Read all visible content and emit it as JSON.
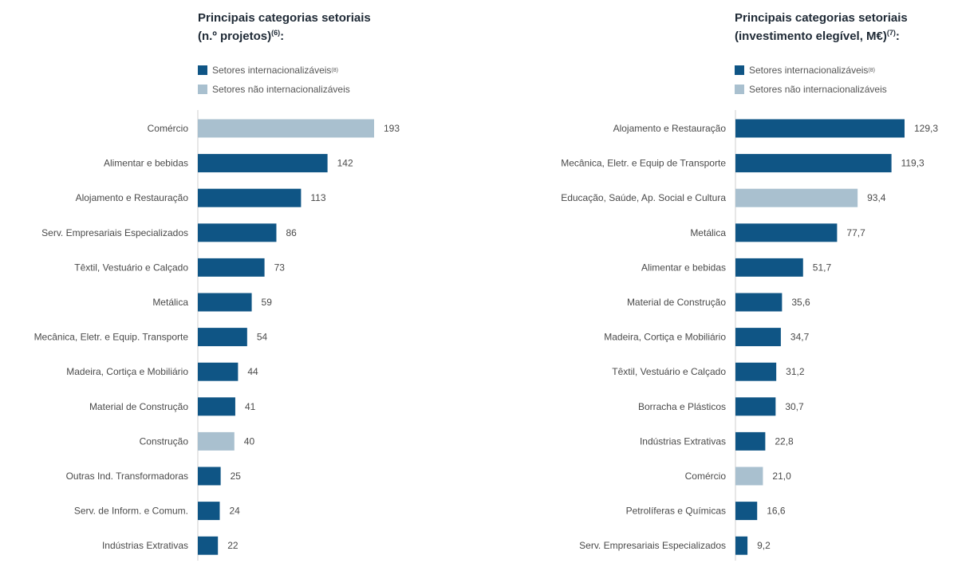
{
  "colors": {
    "internacionalizaveis": "#0f5585",
    "nao_internacionalizaveis": "#a9c0cf",
    "axis": "#cfcfcf"
  },
  "chart_data": [
    {
      "type": "bar",
      "orientation": "horizontal",
      "title_line1": "Principais categorias setoriais",
      "title_line2": "(n.º projetos)",
      "title_sup": "(6)",
      "title_suffix": ":",
      "legend": [
        {
          "label": "Setores internacionalizáveis",
          "sup": "(8)",
          "key": "internacionalizaveis"
        },
        {
          "label": "Setores não internacionalizáveis",
          "sup": "",
          "key": "nao_internacionalizaveis"
        }
      ],
      "xlim": [
        0,
        193
      ],
      "categories": [
        "Comércio",
        "Alimentar e bebidas",
        "Alojamento e Restauração",
        "Serv. Empresariais Especializados",
        "Têxtil, Vestuário e Calçado",
        "Metálica",
        "Mecânica, Eletr. e Equip. Transporte",
        "Madeira, Cortiça e Mobiliário",
        "Material de Construção",
        "Construção",
        "Outras Ind. Transformadoras",
        "Serv. de Inform. e Comum.",
        "Indústrias Extrativas"
      ],
      "values": [
        193,
        142,
        113,
        86,
        73,
        59,
        54,
        44,
        41,
        40,
        25,
        24,
        22
      ],
      "value_labels": [
        "193",
        "142",
        "113",
        "86",
        "73",
        "59",
        "54",
        "44",
        "41",
        "40",
        "25",
        "24",
        "22"
      ],
      "groups": [
        "nao_internacionalizaveis",
        "internacionalizaveis",
        "internacionalizaveis",
        "internacionalizaveis",
        "internacionalizaveis",
        "internacionalizaveis",
        "internacionalizaveis",
        "internacionalizaveis",
        "internacionalizaveis",
        "nao_internacionalizaveis",
        "internacionalizaveis",
        "internacionalizaveis",
        "internacionalizaveis"
      ]
    },
    {
      "type": "bar",
      "orientation": "horizontal",
      "title_line1": "Principais categorias setoriais",
      "title_line2": "(investimento elegível, M€)",
      "title_sup": "(7)",
      "title_suffix": ":",
      "legend": [
        {
          "label": "Setores internacionalizáveis",
          "sup": "(8)",
          "key": "internacionalizaveis"
        },
        {
          "label": "Setores não internacionalizáveis",
          "sup": "",
          "key": "nao_internacionalizaveis"
        }
      ],
      "xlim": [
        0,
        129.3
      ],
      "categories": [
        "Alojamento e Restauração",
        "Mecânica, Eletr. e Equip de Transporte",
        "Educação, Saúde, Ap. Social e Cultura",
        "Metálica",
        "Alimentar e bebidas",
        "Material de Construção",
        "Madeira, Cortiça e Mobiliário",
        "Têxtil, Vestuário e Calçado",
        "Borracha e Plásticos",
        "Indústrias Extrativas",
        "Comércio",
        "Petrolíferas e Químicas",
        "Serv. Empresariais Especializados"
      ],
      "values": [
        129.3,
        119.3,
        93.4,
        77.7,
        51.7,
        35.6,
        34.7,
        31.2,
        30.7,
        22.8,
        21.0,
        16.6,
        9.2
      ],
      "value_labels": [
        "129,3",
        "119,3",
        "93,4",
        "77,7",
        "51,7",
        "35,6",
        "34,7",
        "31,2",
        "30,7",
        "22,8",
        "21,0",
        "16,6",
        "9,2"
      ],
      "groups": [
        "internacionalizaveis",
        "internacionalizaveis",
        "nao_internacionalizaveis",
        "internacionalizaveis",
        "internacionalizaveis",
        "internacionalizaveis",
        "internacionalizaveis",
        "internacionalizaveis",
        "internacionalizaveis",
        "internacionalizaveis",
        "nao_internacionalizaveis",
        "internacionalizaveis",
        "internacionalizaveis"
      ]
    }
  ]
}
